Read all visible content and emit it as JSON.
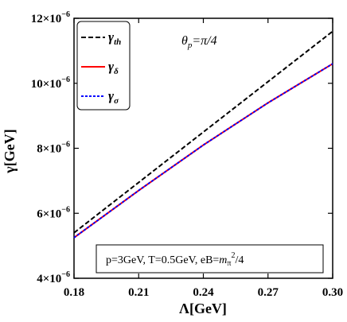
{
  "chart_data": {
    "type": "line",
    "title": "",
    "xlabel": "Λ[GeV]",
    "ylabel": "γ[GeV]",
    "xlim": [
      0.18,
      0.3
    ],
    "ylim": [
      4e-06,
      1.2e-05
    ],
    "xticks": [
      {
        "value": 0.18,
        "label": "0.18"
      },
      {
        "value": 0.21,
        "label": "0.21"
      },
      {
        "value": 0.24,
        "label": "0.24"
      },
      {
        "value": 0.27,
        "label": "0.27"
      },
      {
        "value": 0.3,
        "label": "0.30"
      }
    ],
    "yticks": [
      {
        "value": 4e-06,
        "mant": "4",
        "exp": "−6"
      },
      {
        "value": 6e-06,
        "mant": "6",
        "exp": "−6"
      },
      {
        "value": 8e-06,
        "mant": "8",
        "exp": "−6"
      },
      {
        "value": 1e-05,
        "mant": "10",
        "exp": "−6"
      },
      {
        "value": 1.2e-05,
        "mant": "12",
        "exp": "−6"
      }
    ],
    "series": [
      {
        "name": "γth",
        "color": "#000000",
        "dash": "dashed",
        "x": [
          0.18,
          0.21,
          0.24,
          0.27,
          0.3
        ],
        "y": [
          5.4e-06,
          6.95e-06,
          8.5e-06,
          1.005e-05,
          1.16e-05
        ]
      },
      {
        "name": "γδ",
        "color": "#ff0000",
        "dash": "solid",
        "x": [
          0.18,
          0.21,
          0.24,
          0.27,
          0.3
        ],
        "y": [
          5.25e-06,
          6.7e-06,
          8.1e-06,
          9.4e-06,
          1.06e-05
        ]
      },
      {
        "name": "γσ",
        "color": "#0000ff",
        "dash": "dotted",
        "x": [
          0.18,
          0.21,
          0.24,
          0.27,
          0.3
        ],
        "y": [
          5.25e-06,
          6.7e-06,
          8.1e-06,
          9.4e-06,
          1.06e-05
        ]
      }
    ],
    "legend": {
      "position": "top-left",
      "entries": [
        {
          "base": "γ",
          "sub": "th"
        },
        {
          "base": "γ",
          "sub": "δ"
        },
        {
          "base": "γ",
          "sub": "σ"
        }
      ]
    },
    "annotations": {
      "theta": {
        "base": "θ",
        "sub": "p",
        "rest": "=π/4"
      },
      "params": {
        "text": "p=3GeV, T=0.5GeV, eB=",
        "m": "m",
        "msub": "π",
        "msup": "2",
        "rest": "/4"
      }
    },
    "grid": false
  }
}
